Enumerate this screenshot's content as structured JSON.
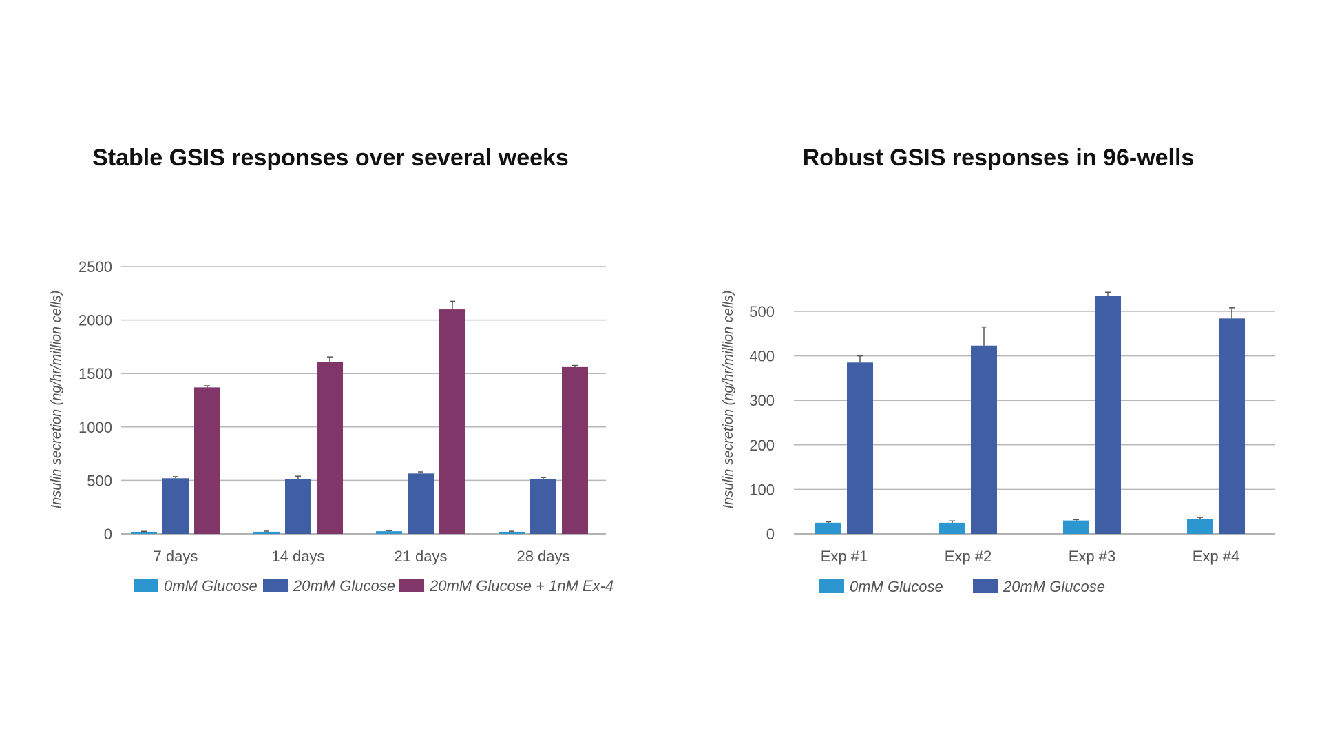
{
  "chart_data": [
    {
      "type": "bar",
      "title": "Stable GSIS responses over several weeks",
      "ylabel": "Insulin secretion (ng/hr/million cells)",
      "xlabel": "",
      "ylim": [
        0,
        2500
      ],
      "yticks": [
        0,
        500,
        1000,
        1500,
        2000,
        2500
      ],
      "grid": true,
      "legend": "bottom",
      "categories": [
        "7 days",
        "14 days",
        "21 days",
        "28 days"
      ],
      "series": [
        {
          "name": "0mM Glucose",
          "color": "#2b96cf",
          "values": [
            20,
            20,
            25,
            20
          ],
          "errors": [
            4,
            6,
            6,
            5
          ]
        },
        {
          "name": "20mM Glucose",
          "color": "#405ea3",
          "values": [
            520,
            510,
            565,
            515
          ],
          "errors": [
            15,
            30,
            15,
            12
          ]
        },
        {
          "name": "20mM Glucose + 1nM Ex-4",
          "color": "#813669",
          "values": [
            1370,
            1610,
            2100,
            1560
          ],
          "errors": [
            15,
            45,
            75,
            15
          ]
        }
      ]
    },
    {
      "type": "bar",
      "title": "Robust GSIS responses in 96-wells",
      "ylabel": "Insulin secretion (ng/hr/million cells)",
      "xlabel": "",
      "ylim": [
        0,
        500
      ],
      "yticks": [
        0,
        100,
        200,
        300,
        400,
        500
      ],
      "grid": true,
      "legend": "bottom",
      "categories": [
        "Exp #1",
        "Exp #2",
        "Exp #3",
        "Exp #4"
      ],
      "series": [
        {
          "name": "0mM Glucose",
          "color": "#2b96cf",
          "values": [
            25,
            25,
            30,
            33
          ],
          "errors": [
            2,
            4,
            2,
            4
          ]
        },
        {
          "name": "20mM Glucose",
          "color": "#405ea3",
          "values": [
            385,
            423,
            535,
            484
          ],
          "errors": [
            15,
            42,
            8,
            24
          ]
        }
      ]
    }
  ]
}
